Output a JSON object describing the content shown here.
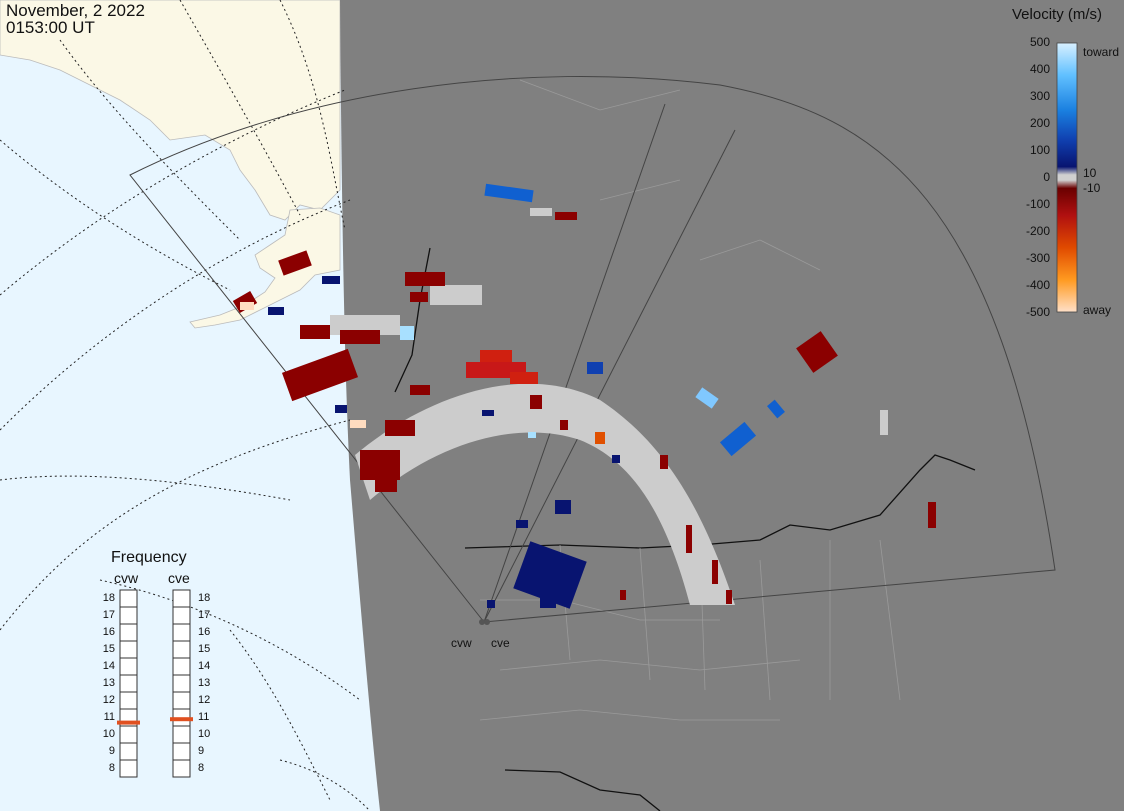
{
  "header": {
    "date": "November, 2 2022",
    "time": "0153:00 UT"
  },
  "velocity_legend": {
    "title": "Velocity (m/s)",
    "ticks": [
      "500",
      "400",
      "300",
      "200",
      "100",
      "0",
      "-100",
      "-200",
      "-300",
      "-400",
      "-500"
    ],
    "toward_label": "toward",
    "away_label": "away",
    "threshold_pos": "10",
    "threshold_neg": "-10"
  },
  "frequency_panel": {
    "title": "Frequency",
    "radars": [
      "cvw",
      "cve"
    ],
    "scale": [
      "18",
      "17",
      "16",
      "15",
      "14",
      "13",
      "12",
      "11",
      "10",
      "9",
      "8"
    ],
    "cvw_mhz": 10.7,
    "cve_mhz": 10.9
  },
  "map": {
    "radar_sites": [
      "cvw",
      "cve"
    ],
    "colors": {
      "ocean": "#e8f6ff",
      "night": "#808080",
      "land_day": "#fbf8e6",
      "ground_scatter": "#cccccc",
      "toward_strong": "#0a1a80",
      "toward_mid": "#1060d0",
      "away_strong": "#8b0000",
      "away_mid": "#d02010",
      "away_extreme": "#ff8820"
    }
  }
}
